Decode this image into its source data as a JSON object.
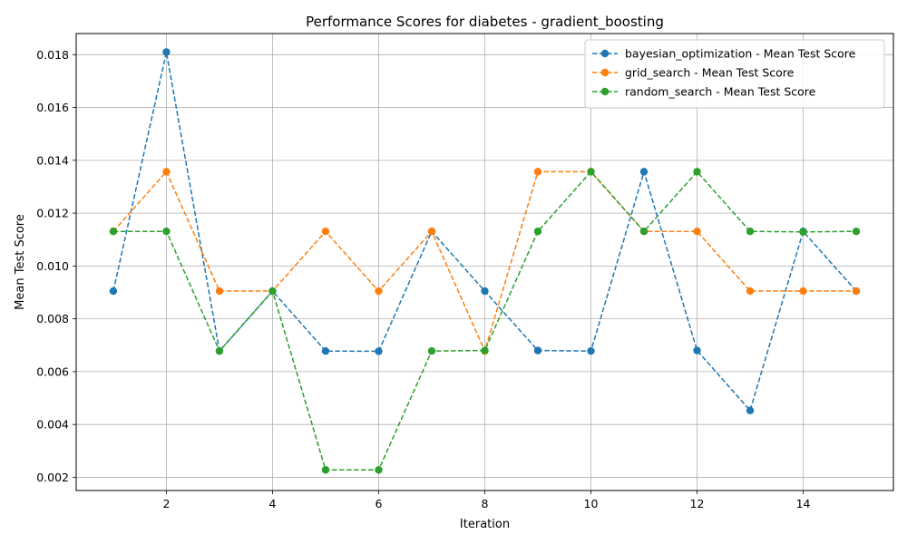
{
  "chart_data": {
    "type": "line",
    "title": "Performance Scores for diabetes - gradient_boosting",
    "xlabel": "Iteration",
    "ylabel": "Mean Test Score",
    "xlim": [
      0.3,
      15.7
    ],
    "ylim": [
      0.0015,
      0.0188
    ],
    "xticks": [
      2,
      4,
      6,
      8,
      10,
      12,
      14
    ],
    "yticks": [
      0.002,
      0.004,
      0.006,
      0.008,
      0.01,
      0.012,
      0.014,
      0.016,
      0.018
    ],
    "ytick_labels": [
      "0.002",
      "0.004",
      "0.006",
      "0.008",
      "0.010",
      "0.012",
      "0.014",
      "0.016",
      "0.018"
    ],
    "grid": true,
    "legend_position": "top-right",
    "x": [
      1,
      2,
      3,
      4,
      5,
      6,
      7,
      8,
      9,
      10,
      11,
      12,
      13,
      14,
      15
    ],
    "series": [
      {
        "name": "bayesian_optimization - Mean Test Score",
        "color": "#1f77b4",
        "values": [
          0.00905,
          0.0181,
          0.00678,
          0.00905,
          0.00678,
          0.00677,
          0.01131,
          0.00905,
          0.0068,
          0.00678,
          0.01357,
          0.0068,
          0.00453,
          0.01131,
          0.00905
        ]
      },
      {
        "name": "grid_search - Mean Test Score",
        "color": "#ff7f0e",
        "values": [
          0.01131,
          0.01357,
          0.00905,
          0.00905,
          0.01131,
          0.00905,
          0.01131,
          0.00678,
          0.01357,
          0.01357,
          0.01131,
          0.01131,
          0.00905,
          0.00905,
          0.00905
        ]
      },
      {
        "name": "random_search - Mean Test Score",
        "color": "#2ca02c",
        "values": [
          0.01131,
          0.01131,
          0.00678,
          0.00905,
          0.00228,
          0.00228,
          0.00678,
          0.0068,
          0.01131,
          0.01357,
          0.01131,
          0.01357,
          0.01131,
          0.01129,
          0.01131
        ]
      }
    ]
  }
}
